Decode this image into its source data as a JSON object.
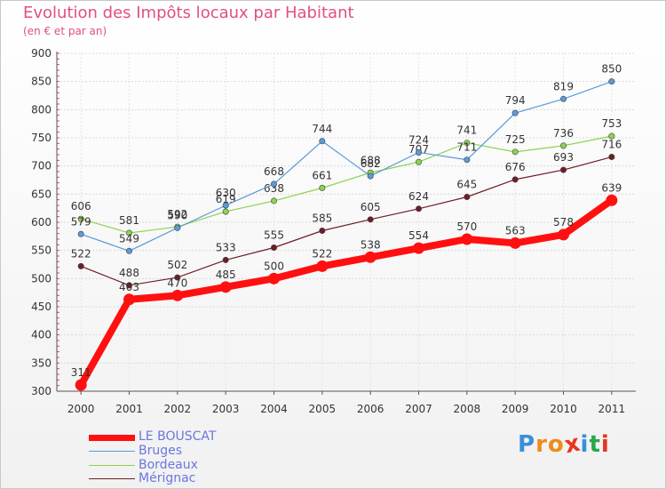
{
  "header": {
    "title": "Evolution des Impôts locaux par Habitant",
    "subtitle": "(en € et par an)"
  },
  "logo": {
    "letters": [
      "P",
      "r",
      "o",
      "x",
      "i",
      "t",
      "i"
    ],
    "colors": [
      "#3a8fd8",
      "#f08a1c",
      "#f08a1c",
      "#e8341c",
      "#3a8fd8",
      "#2aa84a",
      "#e8341c"
    ]
  },
  "chart_data": {
    "type": "line",
    "x": [
      "2000",
      "2001",
      "2002",
      "2003",
      "2004",
      "2005",
      "2006",
      "2007",
      "2008",
      "2009",
      "2010",
      "2011"
    ],
    "ylim": [
      300,
      900
    ],
    "yticks": [
      300,
      350,
      400,
      450,
      500,
      550,
      600,
      650,
      700,
      750,
      800,
      850,
      900
    ],
    "grid": true,
    "legend_position": "bottom-left",
    "series": [
      {
        "name": "Mérignac",
        "color": "#6e1d26",
        "values": [
          522,
          488,
          502,
          533,
          555,
          585,
          605,
          624,
          645,
          676,
          693,
          716
        ]
      },
      {
        "name": "Bordeaux",
        "color": "#8ad34f",
        "values": [
          606,
          581,
          592,
          619,
          638,
          661,
          688,
          707,
          741,
          725,
          736,
          753
        ]
      },
      {
        "name": "Bruges",
        "color": "#5a9ad8",
        "values": [
          579,
          549,
          590,
          630,
          668,
          744,
          682,
          724,
          711,
          794,
          819,
          850
        ]
      },
      {
        "name": "LE BOUSCAT",
        "color": "#ff1010",
        "values": [
          311,
          463,
          470,
          485,
          500,
          522,
          538,
          554,
          570,
          563,
          578,
          639
        ]
      }
    ]
  }
}
